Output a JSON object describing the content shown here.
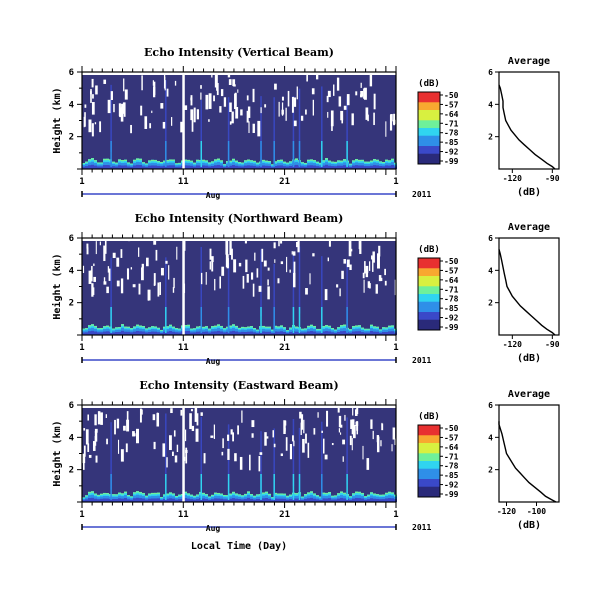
{
  "chart_data": [
    {
      "type": "heatmap",
      "title": "Echo Intensity (Vertical Beam)",
      "ylabel": "Height (km)",
      "ylim": [
        0,
        6
      ],
      "y_ticks": [
        "6",
        "4",
        "2"
      ],
      "x_ticks": [
        "1",
        "11",
        "21",
        "1"
      ],
      "x_bracket": "Aug",
      "year": "2011",
      "colorbar": {
        "unit": "(dB)",
        "ticks": [
          "-50",
          "-57",
          "-64",
          "-71",
          "-78",
          "-85",
          "-92",
          "-99"
        ],
        "range": [
          -99,
          -50
        ]
      },
      "profile": {
        "title": "Average",
        "xlabel": "(dB)",
        "x_ticks": [
          "-120",
          "-90"
        ],
        "y_ticks": [
          "6",
          "4",
          "2"
        ],
        "xlim": [
          -130,
          -85
        ],
        "ylim": [
          0,
          6
        ],
        "x": [
          -131,
          -129,
          -128,
          -127,
          -127,
          -126,
          -125,
          -123,
          -121,
          -118,
          -115,
          -111,
          -107,
          -103,
          -98,
          -94,
          -90,
          -88
        ],
        "y": [
          5.2,
          5.0,
          4.6,
          4.2,
          3.8,
          3.4,
          3.0,
          2.7,
          2.4,
          2.1,
          1.8,
          1.5,
          1.2,
          0.9,
          0.6,
          0.35,
          0.15,
          0.0
        ]
      }
    },
    {
      "type": "heatmap",
      "title": "Echo Intensity (Northward Beam)",
      "ylabel": "Height (km)",
      "ylim": [
        0,
        6
      ],
      "y_ticks": [
        "6",
        "4",
        "2"
      ],
      "x_ticks": [
        "1",
        "11",
        "21",
        "1"
      ],
      "x_bracket": "Aug",
      "year": "2011",
      "colorbar": {
        "unit": "(dB)",
        "ticks": [
          "-50",
          "-57",
          "-64",
          "-71",
          "-78",
          "-85",
          "-92",
          "-99"
        ],
        "range": [
          -99,
          -50
        ]
      },
      "profile": {
        "title": "Average",
        "xlabel": "(dB)",
        "x_ticks": [
          "-120",
          "-90"
        ],
        "y_ticks": [
          "6",
          "4",
          "2"
        ],
        "xlim": [
          -130,
          -85
        ],
        "ylim": [
          0,
          6
        ],
        "x": [
          -131,
          -129,
          -128,
          -127,
          -126,
          -125,
          -124,
          -122,
          -120,
          -117,
          -114,
          -110,
          -106,
          -102,
          -98,
          -94,
          -90,
          -88
        ],
        "y": [
          5.3,
          5.0,
          4.6,
          4.2,
          3.8,
          3.4,
          3.0,
          2.7,
          2.4,
          2.1,
          1.8,
          1.5,
          1.2,
          0.9,
          0.6,
          0.35,
          0.15,
          0.0
        ]
      }
    },
    {
      "type": "heatmap",
      "title": "Echo Intensity (Eastward Beam)",
      "ylabel": "Height (km)",
      "xlabel": "Local Time (Day)",
      "ylim": [
        0,
        6
      ],
      "y_ticks": [
        "6",
        "4",
        "2"
      ],
      "x_ticks": [
        "1",
        "11",
        "21",
        "1"
      ],
      "x_bracket": "Aug",
      "year": "2011",
      "colorbar": {
        "unit": "(dB)",
        "ticks": [
          "-50",
          "-57",
          "-64",
          "-71",
          "-78",
          "-85",
          "-92",
          "-99"
        ],
        "range": [
          -99,
          -50
        ]
      },
      "profile": {
        "title": "Average",
        "xlabel": "(dB)",
        "x_ticks": [
          "-120",
          "-100"
        ],
        "y_ticks": [
          "6",
          "4",
          "2"
        ],
        "xlim": [
          -125,
          -85
        ],
        "ylim": [
          0,
          6
        ],
        "x": [
          -126,
          -125,
          -124,
          -123,
          -122,
          -121,
          -120,
          -118,
          -116,
          -114,
          -111,
          -108,
          -105,
          -101,
          -97,
          -94,
          -90,
          -87
        ],
        "y": [
          5.0,
          4.8,
          4.5,
          4.2,
          3.8,
          3.4,
          3.0,
          2.7,
          2.4,
          2.1,
          1.8,
          1.5,
          1.2,
          0.9,
          0.6,
          0.35,
          0.15,
          0.0
        ]
      }
    }
  ],
  "colors": {
    "background_field": "#35357a",
    "colormap": [
      "#2a2a7a",
      "#3a49c8",
      "#2f8fe8",
      "#30d4f0",
      "#6ff09a",
      "#d8f040",
      "#f8a830",
      "#e83030"
    ]
  }
}
